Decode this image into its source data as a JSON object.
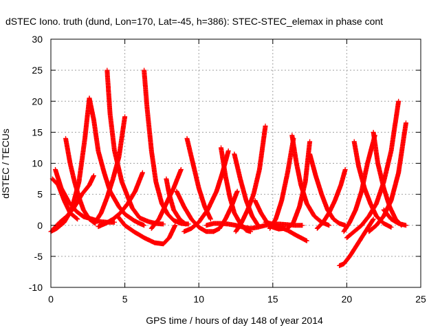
{
  "chart_data": {
    "type": "scatter",
    "title": "dSTEC Iono. truth (dund, Lon=170, Lat=-45, h=386): STEC-STEC_elemax in phase cont",
    "xlabel": "GPS time / hours of day 148 of year 2014",
    "ylabel": "dSTEC  / TECUs",
    "xlim": [
      0,
      25
    ],
    "ylim": [
      -10,
      30
    ],
    "xticks": [
      0,
      5,
      10,
      15,
      20,
      25
    ],
    "yticks": [
      -10,
      -5,
      0,
      5,
      10,
      15,
      20,
      25,
      30
    ],
    "xtick_labels": [
      "0",
      "5",
      "10",
      "15",
      "20",
      "25"
    ],
    "ytick_labels": [
      "-10",
      "-5",
      "0",
      "5",
      "10",
      "15",
      "20",
      "25",
      "30"
    ],
    "grid": true,
    "marker": "+",
    "color": "#ff0000",
    "series": [
      {
        "x": [
          0.0,
          0.4,
          0.9,
          1.4,
          1.9,
          2.3,
          2.6
        ],
        "y": [
          -1.0,
          -0.5,
          0.5,
          2.5,
          7.0,
          14.0,
          20.5
        ]
      },
      {
        "x": [
          2.6,
          2.9,
          3.2,
          3.6,
          4.0,
          4.6,
          5.0,
          5.6,
          6.0,
          6.3
        ],
        "y": [
          20.5,
          17.0,
          12.0,
          8.5,
          5.5,
          3.0,
          1.8,
          0.8,
          0.3,
          0.0
        ]
      },
      {
        "x": [
          0.3,
          0.7,
          1.2,
          1.7,
          2.2,
          2.8,
          3.3,
          3.8,
          4.3
        ],
        "y": [
          9.0,
          6.0,
          3.8,
          2.3,
          1.4,
          1.0,
          0.6,
          0.5,
          0.5
        ]
      },
      {
        "x": [
          0.1,
          0.5,
          0.9,
          1.3,
          1.8
        ],
        "y": [
          7.5,
          6.5,
          4.0,
          2.0,
          1.0
        ]
      },
      {
        "x": [
          0.2,
          0.6,
          1.1,
          1.6,
          2.1,
          2.6,
          2.9
        ],
        "y": [
          -0.5,
          0.5,
          1.5,
          3.0,
          5.0,
          6.5,
          8.0
        ]
      },
      {
        "x": [
          1.0,
          1.3,
          1.6,
          1.9,
          2.2,
          2.6,
          3.0
        ],
        "y": [
          14.0,
          10.0,
          7.0,
          4.5,
          2.5,
          1.0,
          0.3
        ]
      },
      {
        "x": [
          3.0,
          3.4,
          3.8,
          4.2,
          4.6,
          5.0
        ],
        "y": [
          0.5,
          2.0,
          4.5,
          7.5,
          11.0,
          17.5
        ]
      },
      {
        "x": [
          3.8,
          4.0,
          4.3,
          4.8,
          5.5,
          6.0,
          6.6,
          7.1,
          7.6
        ],
        "y": [
          25.0,
          18.0,
          12.0,
          7.0,
          2.8,
          1.2,
          0.6,
          0.3,
          0.2
        ]
      },
      {
        "x": [
          3.2,
          3.7,
          4.2,
          4.7,
          5.2,
          5.7,
          6.2
        ],
        "y": [
          -0.2,
          0.3,
          1.0,
          2.0,
          3.5,
          5.5,
          8.5
        ]
      },
      {
        "x": [
          6.3,
          6.5,
          6.8,
          7.1,
          7.5,
          7.9,
          8.3,
          8.8,
          9.3
        ],
        "y": [
          25.0,
          19.0,
          12.0,
          7.0,
          3.5,
          1.8,
          0.8,
          0.3,
          0.2
        ]
      },
      {
        "x": [
          4.5,
          5.0,
          5.6,
          6.3,
          7.0,
          7.6,
          8.0,
          8.4
        ],
        "y": [
          1.5,
          0.0,
          -1.0,
          -2.0,
          -2.8,
          -3.0,
          -2.0,
          0.0
        ]
      },
      {
        "x": [
          6.8,
          7.3,
          7.8,
          8.3,
          8.8
        ],
        "y": [
          -0.5,
          1.0,
          3.5,
          6.0,
          9.0
        ]
      },
      {
        "x": [
          7.8,
          8.0,
          8.3,
          8.7,
          9.1
        ],
        "y": [
          7.5,
          5.0,
          2.5,
          1.0,
          0.2
        ]
      },
      {
        "x": [
          8.5,
          9.0,
          9.5,
          10.0,
          10.5,
          11.0
        ],
        "y": [
          5.5,
          3.0,
          1.0,
          -0.3,
          -1.0,
          -1.0
        ]
      },
      {
        "x": [
          9.2,
          9.6,
          10.0,
          10.4,
          10.8
        ],
        "y": [
          14.0,
          10.0,
          6.0,
          3.0,
          1.0
        ]
      },
      {
        "x": [
          9.0,
          9.5,
          10.0,
          10.6,
          11.2,
          11.6,
          12.0
        ],
        "y": [
          -1.0,
          -0.5,
          0.5,
          2.5,
          5.5,
          8.5,
          12.0
        ]
      },
      {
        "x": [
          11.5,
          11.8,
          12.1,
          12.4,
          12.8,
          13.2,
          13.5
        ],
        "y": [
          12.5,
          8.0,
          4.5,
          2.0,
          0.3,
          -0.8,
          -1.0
        ]
      },
      {
        "x": [
          11.0,
          11.4,
          11.8,
          12.2,
          12.6
        ],
        "y": [
          -1.0,
          -0.5,
          1.0,
          3.0,
          5.5
        ]
      },
      {
        "x": [
          10.5,
          11.0,
          11.5,
          12.0,
          12.5,
          13.0,
          13.5,
          14.0,
          14.5,
          15.0,
          15.5,
          16.0,
          16.5,
          17.0
        ],
        "y": [
          0.0,
          0.3,
          0.3,
          0.2,
          0.0,
          -0.3,
          -0.5,
          -0.3,
          0.0,
          0.2,
          0.2,
          0.1,
          0.0,
          0.0
        ]
      },
      {
        "x": [
          12.5,
          12.9,
          13.3,
          13.7,
          14.1,
          14.5
        ],
        "y": [
          -1.0,
          0.5,
          2.5,
          5.0,
          9.0,
          16.0
        ]
      },
      {
        "x": [
          12.4,
          12.8,
          13.2,
          13.6,
          14.0
        ],
        "y": [
          11.5,
          7.5,
          4.0,
          1.5,
          0.0
        ]
      },
      {
        "x": [
          13.8,
          14.2,
          14.6,
          15.0,
          15.4,
          15.8
        ],
        "y": [
          4.0,
          2.0,
          0.5,
          -0.3,
          -0.6,
          -0.5
        ]
      },
      {
        "x": [
          14.5,
          15.0,
          15.5,
          16.0,
          16.5,
          16.9,
          17.3
        ],
        "y": [
          0.5,
          0.2,
          -0.3,
          -0.8,
          -1.5,
          -2.0,
          -2.5
        ]
      },
      {
        "x": [
          14.8,
          15.2,
          15.6,
          16.0,
          16.4
        ],
        "y": [
          -0.5,
          1.0,
          4.0,
          8.5,
          14.0
        ]
      },
      {
        "x": [
          16.3,
          16.6,
          16.9,
          17.3,
          17.8,
          18.3,
          18.8
        ],
        "y": [
          14.5,
          10.0,
          6.5,
          3.5,
          1.5,
          0.5,
          0.0
        ]
      },
      {
        "x": [
          16.0,
          16.4,
          16.8,
          17.2,
          17.5
        ],
        "y": [
          -0.5,
          0.5,
          3.0,
          7.0,
          13.5
        ]
      },
      {
        "x": [
          17.5,
          17.9,
          18.3,
          18.7,
          19.1,
          19.5,
          19.9
        ],
        "y": [
          11.5,
          8.0,
          5.0,
          2.5,
          1.0,
          0.3,
          0.0
        ]
      },
      {
        "x": [
          18.0,
          18.4,
          18.8,
          19.2,
          19.6,
          19.9
        ],
        "y": [
          -0.5,
          0.5,
          2.0,
          4.0,
          6.5,
          9.0
        ]
      },
      {
        "x": [
          19.5,
          19.8,
          20.2,
          20.6,
          21.0,
          21.4,
          21.8
        ],
        "y": [
          -6.5,
          -6.2,
          -5.0,
          -3.5,
          -2.0,
          -0.5,
          1.0
        ]
      },
      {
        "x": [
          19.8,
          20.2,
          20.6,
          21.0,
          21.4,
          21.9
        ],
        "y": [
          -1.0,
          0.5,
          2.5,
          5.5,
          10.0,
          14.5
        ]
      },
      {
        "x": [
          20.5,
          20.8,
          21.2,
          21.6,
          22.0,
          22.5,
          23.0
        ],
        "y": [
          13.5,
          9.5,
          6.0,
          3.5,
          1.5,
          0.3,
          -0.3
        ]
      },
      {
        "x": [
          21.8,
          22.1,
          22.5,
          22.9,
          23.3,
          23.7
        ],
        "y": [
          15.0,
          10.0,
          6.0,
          3.0,
          1.0,
          0.0
        ]
      },
      {
        "x": [
          20.0,
          20.5,
          21.0,
          21.5,
          22.0,
          22.5,
          23.0,
          23.5
        ],
        "y": [
          -2.0,
          -1.0,
          0.0,
          1.5,
          3.5,
          7.0,
          12.0,
          20.0
        ]
      },
      {
        "x": [
          21.5,
          22.0,
          22.5,
          23.0,
          23.5,
          24.0
        ],
        "y": [
          -1.0,
          0.0,
          1.5,
          4.0,
          8.5,
          16.5
        ]
      },
      {
        "x": [
          22.5,
          23.0,
          23.5,
          24.0
        ],
        "y": [
          2.5,
          1.0,
          0.3,
          0.0
        ]
      }
    ]
  }
}
